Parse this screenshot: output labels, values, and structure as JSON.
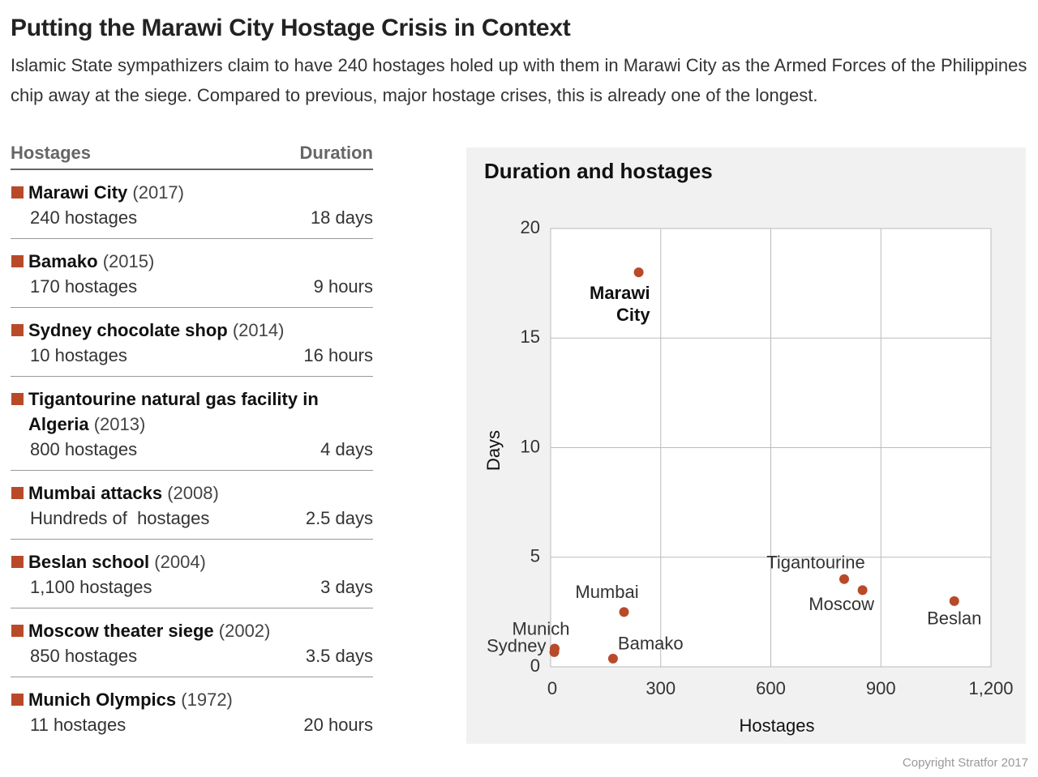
{
  "header": {
    "title": "Putting the Marawi City Hostage Crisis in Context",
    "subtitle": "Islamic State sympathizers claim to have 240 hostages holed up with them in Marawi City as the Armed Forces of the Philippines chip away at the siege. Compared to previous, major hostage crises, this is already one of the longest."
  },
  "table": {
    "columns": [
      "Hostages",
      "Duration"
    ],
    "rows": [
      {
        "name": "Marawi City",
        "year": "(2017)",
        "hostages": "240 hostages",
        "duration": "18 days"
      },
      {
        "name": "Bamako",
        "year": "(2015)",
        "hostages": "170 hostages",
        "duration": "9 hours"
      },
      {
        "name": "Sydney chocolate shop",
        "year": "(2014)",
        "hostages": "10 hostages",
        "duration": "16 hours"
      },
      {
        "name": "Tigantourine natural gas facility in Algeria",
        "year": "(2013)",
        "hostages": "800 hostages",
        "duration": "4 days"
      },
      {
        "name": "Mumbai attacks",
        "year": "(2008)",
        "hostages": "Hundreds of  hostages",
        "duration": "2.5 days"
      },
      {
        "name": "Beslan school",
        "year": "(2004)",
        "hostages": "1,100 hostages",
        "duration": "3 days"
      },
      {
        "name": "Moscow theater siege",
        "year": "(2002)",
        "hostages": "850 hostages",
        "duration": "3.5 days"
      },
      {
        "name": "Munich Olympics",
        "year": "(1972)",
        "hostages": "11 hostages",
        "duration": "20 hours"
      }
    ]
  },
  "chart_data": {
    "type": "scatter",
    "title": "Duration and hostages",
    "x_label": "Hostages",
    "y_label": "Days",
    "color": "#b84a2a",
    "grid": true,
    "highlight": 0,
    "x": [
      240,
      170,
      10,
      800,
      200,
      1100,
      850,
      11
    ],
    "values": [
      18,
      0.375,
      0.67,
      4,
      2.5,
      3,
      3.5,
      0.83
    ],
    "point_labels": [
      "Marawi City",
      "Bamako",
      "Sydney",
      "Tigantourine",
      "Mumbai",
      "Beslan",
      "Moscow",
      "Munich"
    ],
    "xlim": [
      0,
      1200
    ],
    "xticks": [
      0,
      300,
      600,
      900,
      {
        "value": 1200,
        "label": "1,200"
      }
    ],
    "ylim": [
      0,
      20
    ],
    "yticks": [
      0,
      5,
      10,
      15,
      20
    ]
  },
  "footer": {
    "copyright": "Copyright Stratfor 2017"
  }
}
